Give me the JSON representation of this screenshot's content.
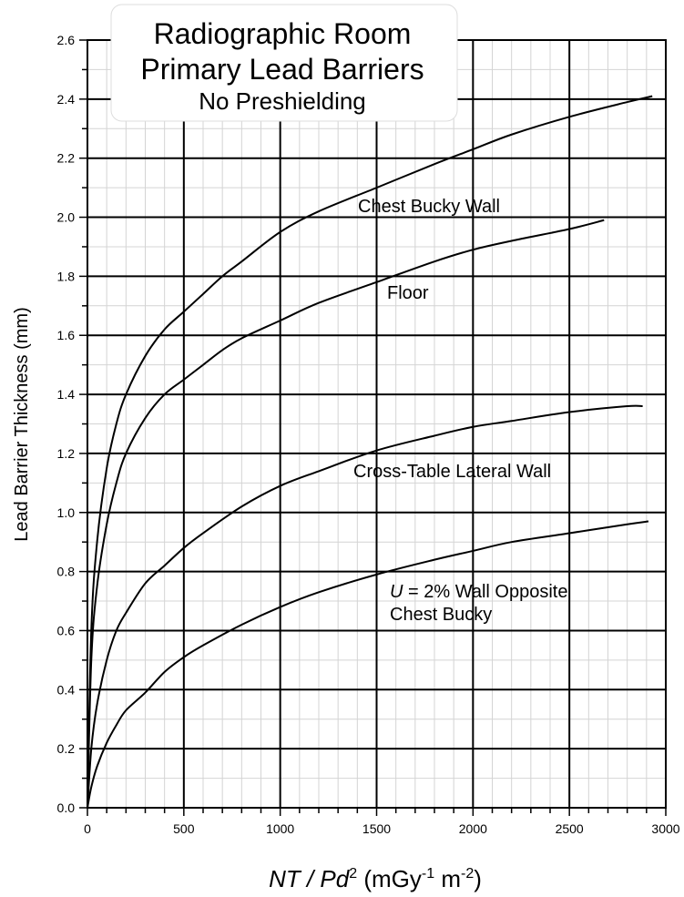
{
  "chart_data": {
    "type": "line",
    "title_lines": [
      "Radiographic Room",
      "Primary Lead Barriers",
      "No Preshielding"
    ],
    "xlabel": {
      "prefix": "NT / Pd",
      "sup1": "2",
      "mid": " (mGy",
      "sup2": "-1",
      "mid2": " m",
      "sup3": "-2",
      "suffix": ")"
    },
    "ylabel": "Lead Barrier Thickness (mm)",
    "xlim": [
      0,
      3000
    ],
    "ylim": [
      0,
      2.6
    ],
    "x_ticks": [
      "0",
      "500",
      "1000",
      "1500",
      "2000",
      "2500",
      "3000"
    ],
    "y_ticks": [
      "0.0",
      "0.2",
      "0.4",
      "0.6",
      "0.8",
      "1.0",
      "1.2",
      "1.4",
      "1.6",
      "1.8",
      "2.0",
      "2.2",
      "2.4",
      "2.6"
    ],
    "grid": true,
    "series": [
      {
        "name": "Chest Bucky Wall",
        "label_lines": [
          {
            "text": "Chest Bucky Wall"
          }
        ],
        "x": [
          0,
          20,
          50,
          100,
          150,
          200,
          300,
          400,
          500,
          600,
          700,
          800,
          1000,
          1200,
          1500,
          1800,
          2000,
          2200,
          2500,
          2800,
          2930
        ],
        "y": [
          0.0,
          0.6,
          0.9,
          1.15,
          1.3,
          1.4,
          1.53,
          1.62,
          1.68,
          1.74,
          1.8,
          1.85,
          1.95,
          2.02,
          2.1,
          2.18,
          2.23,
          2.28,
          2.34,
          2.39,
          2.41
        ]
      },
      {
        "name": "Floor",
        "label_lines": [
          {
            "text": "Floor"
          }
        ],
        "x": [
          0,
          20,
          50,
          100,
          150,
          200,
          300,
          400,
          500,
          600,
          700,
          800,
          1000,
          1200,
          1500,
          1800,
          2000,
          2200,
          2500,
          2680
        ],
        "y": [
          0.0,
          0.5,
          0.75,
          0.96,
          1.1,
          1.2,
          1.32,
          1.4,
          1.45,
          1.5,
          1.55,
          1.59,
          1.65,
          1.71,
          1.78,
          1.85,
          1.89,
          1.92,
          1.96,
          1.99
        ]
      },
      {
        "name": "Cross-Table Lateral Wall",
        "label_lines": [
          {
            "text": "Cross-Table Lateral Wall"
          }
        ],
        "x": [
          0,
          20,
          50,
          100,
          150,
          200,
          300,
          400,
          500,
          600,
          800,
          1000,
          1200,
          1500,
          1800,
          2000,
          2200,
          2500,
          2800,
          2880
        ],
        "y": [
          0.0,
          0.2,
          0.35,
          0.5,
          0.6,
          0.66,
          0.76,
          0.82,
          0.88,
          0.93,
          1.02,
          1.09,
          1.14,
          1.21,
          1.26,
          1.29,
          1.31,
          1.34,
          1.36,
          1.36
        ]
      },
      {
        "name": "U = 2% Wall Opposite Chest Bucky",
        "label_lines": [
          {
            "italic": "U",
            "text": " = 2% Wall Opposite"
          },
          {
            "text": "Chest Bucky"
          }
        ],
        "x": [
          0,
          20,
          50,
          100,
          150,
          200,
          300,
          400,
          500,
          600,
          800,
          1000,
          1200,
          1500,
          1800,
          2000,
          2200,
          2500,
          2800,
          2910
        ],
        "y": [
          0.0,
          0.07,
          0.14,
          0.22,
          0.28,
          0.33,
          0.39,
          0.46,
          0.51,
          0.55,
          0.62,
          0.68,
          0.73,
          0.79,
          0.84,
          0.87,
          0.9,
          0.93,
          0.96,
          0.97
        ]
      }
    ]
  }
}
